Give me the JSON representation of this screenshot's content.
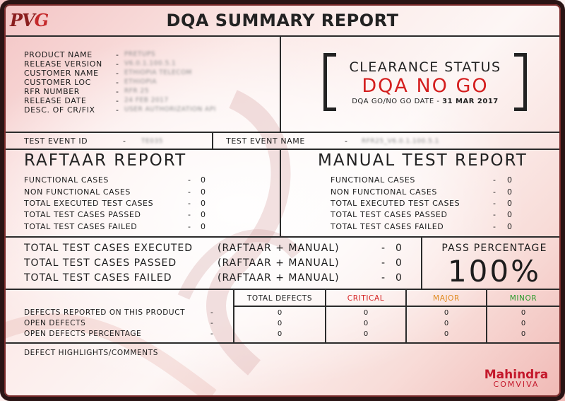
{
  "header": {
    "logo_text_a": "PV",
    "logo_text_b": "G",
    "title": "DQA SUMMARY REPORT"
  },
  "product_info": [
    {
      "label": "PRODUCT NAME",
      "value": "PRETUPS"
    },
    {
      "label": "RELEASE VERSION",
      "value": "V6.0.1.100.5.1"
    },
    {
      "label": "CUSTOMER NAME",
      "value": "ETHIOPIA TELECOM"
    },
    {
      "label": "CUSTOMER LOC",
      "value": "ETHIOPIA"
    },
    {
      "label": "RFR NUMBER",
      "value": "RFR 25"
    },
    {
      "label": "RELEASE DATE",
      "value": "24 FEB 2017"
    },
    {
      "label": "DESC. OF CR/FIX",
      "value": "USER AUTHORIZATION API"
    }
  ],
  "clearance": {
    "title": "CLEARANCE STATUS",
    "status": "DQA NO GO",
    "date_label": "DQA GO/NO GO DATE -",
    "date_value": "31 MAR 2017",
    "status_color": "#d41e1e"
  },
  "test_event": {
    "id_label": "TEST EVENT ID",
    "id_value": "TE035",
    "name_label": "TEST EVENT NAME",
    "name_value": "RFR25_V6.0.1.100.5.1"
  },
  "raftaar": {
    "title": "RAFTAAR REPORT",
    "rows": [
      {
        "label": "FUNCTIONAL CASES",
        "value": "0"
      },
      {
        "label": "NON FUNCTIONAL CASES",
        "value": "0"
      },
      {
        "label": "TOTAL EXECUTED TEST CASES",
        "value": "0"
      },
      {
        "label": "TOTAL TEST CASES PASSED",
        "value": "0"
      },
      {
        "label": "TOTAL TEST CASES FAILED",
        "value": "0"
      }
    ]
  },
  "manual": {
    "title": "MANUAL TEST REPORT",
    "rows": [
      {
        "label": "FUNCTIONAL CASES",
        "value": "0"
      },
      {
        "label": "NON FUNCTIONAL CASES",
        "value": "0"
      },
      {
        "label": "TOTAL EXECUTED TEST CASES",
        "value": "0"
      },
      {
        "label": "TOTAL TEST CASES PASSED",
        "value": "0"
      },
      {
        "label": "TOTAL TEST CASES FAILED",
        "value": "0"
      }
    ]
  },
  "totals": {
    "qualifier": "(RAFTAAR + MANUAL)",
    "rows": [
      {
        "label": "TOTAL TEST CASES EXECUTED",
        "value": "0"
      },
      {
        "label": "TOTAL TEST CASES PASSED",
        "value": "0"
      },
      {
        "label": "TOTAL TEST CASES FAILED",
        "value": "0"
      }
    ]
  },
  "pass_percentage": {
    "label": "PASS PERCENTAGE",
    "value": "100%"
  },
  "defects": {
    "headers": [
      {
        "label": "TOTAL DEFECTS",
        "color": "#1c1c1c"
      },
      {
        "label": "CRITICAL",
        "color": "#d41e1e"
      },
      {
        "label": "MAJOR",
        "color": "#e08a1e"
      },
      {
        "label": "MINOR",
        "color": "#2a9a2a"
      }
    ],
    "rows": [
      {
        "label": "DEFECTS REPORTED ON THIS PRODUCT",
        "values": [
          "0",
          "0",
          "0",
          "0"
        ]
      },
      {
        "label": "OPEN DEFECTS",
        "values": [
          "0",
          "0",
          "0",
          "0"
        ]
      },
      {
        "label": "OPEN DEFECTS PERCENTAGE",
        "values": [
          "0",
          "0",
          "0",
          "0"
        ]
      }
    ]
  },
  "comments_label": "DEFECT HIGHLIGHTS/COMMENTS",
  "brand": {
    "name": "Mahindra",
    "sub": "COMVIVA",
    "color": "#c4182b"
  }
}
